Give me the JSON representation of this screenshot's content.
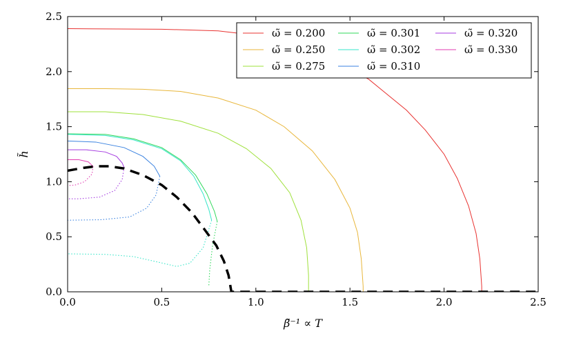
{
  "chart_data": {
    "type": "line",
    "title": "",
    "xlabel": "β̃⁻¹ ∝ T",
    "ylabel": "h̃",
    "xlim": [
      0.0,
      2.5
    ],
    "ylim": [
      0.0,
      2.5
    ],
    "xticks": [
      "0.0",
      "0.5",
      "1.0",
      "1.5",
      "2.0",
      "2.5"
    ],
    "yticks": [
      "0.0",
      "0.5",
      "1.0",
      "1.5",
      "2.0",
      "2.5"
    ],
    "grid": false,
    "legend_position": "top-right",
    "legend_columns": 3,
    "series": [
      {
        "name": "ω̃ = 0.200",
        "color": "#e8312f",
        "solid": [
          [
            0.0,
            2.39
          ],
          [
            0.5,
            2.385
          ],
          [
            0.8,
            2.37
          ],
          [
            1.0,
            2.33
          ],
          [
            1.2,
            2.25
          ],
          [
            1.4,
            2.12
          ],
          [
            1.6,
            1.93
          ],
          [
            1.8,
            1.65
          ],
          [
            1.9,
            1.47
          ],
          [
            2.0,
            1.25
          ],
          [
            2.07,
            1.03
          ],
          [
            2.13,
            0.78
          ],
          [
            2.17,
            0.53
          ],
          [
            2.19,
            0.3
          ],
          [
            2.2,
            0.05
          ],
          [
            2.2,
            0.0
          ]
        ]
      },
      {
        "name": "ω̃ = 0.250",
        "color": "#e8b63a",
        "solid": [
          [
            0.0,
            1.845
          ],
          [
            0.2,
            1.845
          ],
          [
            0.4,
            1.84
          ],
          [
            0.6,
            1.82
          ],
          [
            0.8,
            1.76
          ],
          [
            1.0,
            1.65
          ],
          [
            1.15,
            1.5
          ],
          [
            1.3,
            1.28
          ],
          [
            1.42,
            1.02
          ],
          [
            1.5,
            0.76
          ],
          [
            1.54,
            0.54
          ],
          [
            1.56,
            0.3
          ],
          [
            1.57,
            0.05
          ],
          [
            1.57,
            0.0
          ]
        ]
      },
      {
        "name": "ω̃ = 0.275",
        "color": "#9ee03a",
        "solid": [
          [
            0.0,
            1.635
          ],
          [
            0.2,
            1.635
          ],
          [
            0.4,
            1.61
          ],
          [
            0.6,
            1.55
          ],
          [
            0.8,
            1.44
          ],
          [
            0.95,
            1.3
          ],
          [
            1.08,
            1.12
          ],
          [
            1.18,
            0.9
          ],
          [
            1.24,
            0.65
          ],
          [
            1.27,
            0.4
          ],
          [
            1.28,
            0.15
          ],
          [
            1.28,
            0.0
          ]
        ]
      },
      {
        "name": "ω̃ = 0.301",
        "color": "#2fd85a",
        "solid": [
          [
            0.0,
            1.435
          ],
          [
            0.2,
            1.43
          ],
          [
            0.35,
            1.39
          ],
          [
            0.5,
            1.31
          ],
          [
            0.6,
            1.2
          ],
          [
            0.68,
            1.06
          ],
          [
            0.74,
            0.89
          ],
          [
            0.78,
            0.73
          ],
          [
            0.795,
            0.64
          ]
        ],
        "dotted": [
          [
            0.795,
            0.64
          ],
          [
            0.77,
            0.42
          ],
          [
            0.755,
            0.2
          ],
          [
            0.75,
            0.05
          ]
        ]
      },
      {
        "name": "ω̃ = 0.302",
        "color": "#35e5c8",
        "solid": [
          [
            0.0,
            1.43
          ],
          [
            0.2,
            1.42
          ],
          [
            0.35,
            1.38
          ],
          [
            0.5,
            1.3
          ],
          [
            0.6,
            1.19
          ],
          [
            0.67,
            1.05
          ],
          [
            0.72,
            0.89
          ],
          [
            0.75,
            0.75
          ],
          [
            0.765,
            0.65
          ]
        ],
        "dotted": [
          [
            0.765,
            0.65
          ],
          [
            0.72,
            0.4
          ],
          [
            0.65,
            0.26
          ],
          [
            0.58,
            0.23
          ],
          [
            0.48,
            0.27
          ],
          [
            0.35,
            0.32
          ],
          [
            0.2,
            0.34
          ],
          [
            0.0,
            0.345
          ]
        ]
      },
      {
        "name": "ω̃ = 0.310",
        "color": "#3a82e0",
        "solid": [
          [
            0.0,
            1.37
          ],
          [
            0.15,
            1.36
          ],
          [
            0.3,
            1.31
          ],
          [
            0.4,
            1.23
          ],
          [
            0.46,
            1.14
          ],
          [
            0.49,
            1.05
          ]
        ],
        "dotted": [
          [
            0.49,
            1.05
          ],
          [
            0.47,
            0.88
          ],
          [
            0.42,
            0.76
          ],
          [
            0.33,
            0.68
          ],
          [
            0.18,
            0.655
          ],
          [
            0.0,
            0.65
          ]
        ]
      },
      {
        "name": "ω̃ = 0.320",
        "color": "#a43ae0",
        "solid": [
          [
            0.0,
            1.29
          ],
          [
            0.1,
            1.29
          ],
          [
            0.2,
            1.27
          ],
          [
            0.26,
            1.23
          ],
          [
            0.29,
            1.17
          ],
          [
            0.3,
            1.13
          ]
        ],
        "dotted": [
          [
            0.3,
            1.13
          ],
          [
            0.29,
            1.02
          ],
          [
            0.25,
            0.92
          ],
          [
            0.17,
            0.86
          ],
          [
            0.06,
            0.845
          ],
          [
            0.0,
            0.845
          ]
        ]
      },
      {
        "name": "ω̃ = 0.330",
        "color": "#e03ab0",
        "solid": [
          [
            0.0,
            1.2
          ],
          [
            0.06,
            1.2
          ],
          [
            0.11,
            1.18
          ],
          [
            0.135,
            1.14
          ]
        ],
        "dotted": [
          [
            0.135,
            1.14
          ],
          [
            0.13,
            1.07
          ],
          [
            0.09,
            1.0
          ],
          [
            0.04,
            0.97
          ],
          [
            0.0,
            0.965
          ]
        ]
      }
    ],
    "boundary_curve": {
      "style": "dashed",
      "color": "#000000",
      "points": [
        [
          0.0,
          1.1
        ],
        [
          0.08,
          1.125
        ],
        [
          0.15,
          1.14
        ],
        [
          0.22,
          1.14
        ],
        [
          0.3,
          1.12
        ],
        [
          0.4,
          1.06
        ],
        [
          0.5,
          0.97
        ],
        [
          0.58,
          0.86
        ],
        [
          0.66,
          0.72
        ],
        [
          0.73,
          0.56
        ],
        [
          0.79,
          0.42
        ],
        [
          0.83,
          0.28
        ],
        [
          0.855,
          0.15
        ],
        [
          0.865,
          0.05
        ],
        [
          0.87,
          0.0
        ],
        [
          2.5,
          0.0
        ]
      ]
    }
  }
}
